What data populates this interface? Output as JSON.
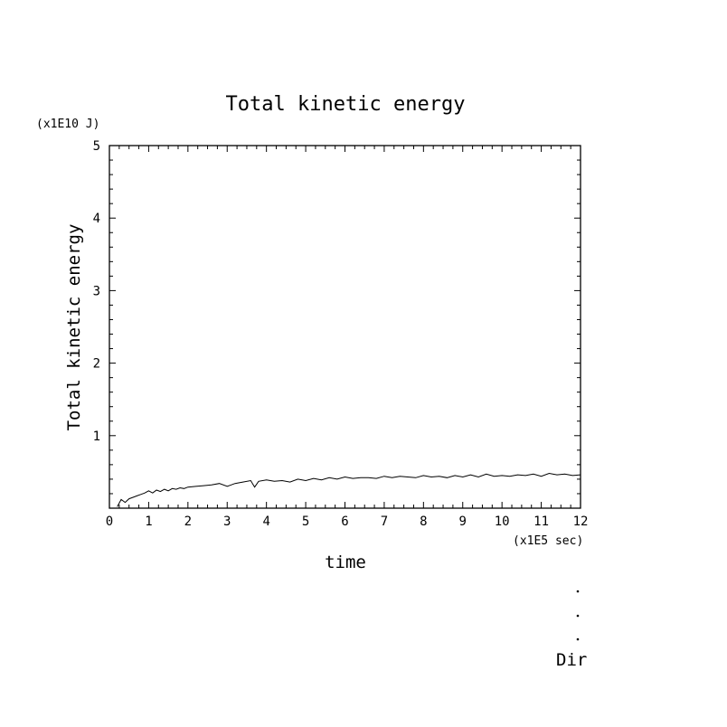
{
  "chart_data": {
    "type": "line",
    "title": "Total kinetic energy",
    "xlabel": "time",
    "ylabel": "Total kinetic energy",
    "x_unit": "(x1E5 sec)",
    "y_unit": "(x1E10 J)",
    "xlim": [
      0,
      12
    ],
    "ylim": [
      0,
      5
    ],
    "x_ticks": [
      "0",
      "1",
      "2",
      "3",
      "4",
      "5",
      "6",
      "7",
      "8",
      "9",
      "10",
      "11",
      "12"
    ],
    "y_ticks": [
      "1",
      "2",
      "3",
      "4",
      "5"
    ],
    "grid": false,
    "series": [
      {
        "x": [
          0.2,
          0.3,
          0.4,
          0.5,
          0.6,
          0.7,
          0.8,
          0.9,
          1.0,
          1.1,
          1.2,
          1.3,
          1.4,
          1.5,
          1.6,
          1.7,
          1.8,
          1.9,
          2.0,
          2.2,
          2.4,
          2.6,
          2.8,
          3.0,
          3.2,
          3.4,
          3.6,
          3.7,
          3.8,
          4.0,
          4.2,
          4.4,
          4.6,
          4.8,
          5.0,
          5.2,
          5.4,
          5.6,
          5.8,
          6.0,
          6.2,
          6.4,
          6.6,
          6.8,
          7.0,
          7.2,
          7.4,
          7.6,
          7.8,
          8.0,
          8.2,
          8.4,
          8.6,
          8.8,
          9.0,
          9.2,
          9.4,
          9.6,
          9.8,
          10.0,
          10.2,
          10.4,
          10.6,
          10.8,
          11.0,
          11.2,
          11.4,
          11.6,
          11.8,
          12.0
        ],
        "y": [
          0.02,
          0.12,
          0.08,
          0.13,
          0.15,
          0.17,
          0.19,
          0.21,
          0.24,
          0.21,
          0.25,
          0.23,
          0.26,
          0.24,
          0.27,
          0.26,
          0.28,
          0.27,
          0.29,
          0.3,
          0.31,
          0.32,
          0.34,
          0.3,
          0.34,
          0.36,
          0.38,
          0.29,
          0.37,
          0.39,
          0.37,
          0.38,
          0.36,
          0.4,
          0.38,
          0.41,
          0.39,
          0.42,
          0.4,
          0.43,
          0.41,
          0.42,
          0.42,
          0.41,
          0.44,
          0.42,
          0.44,
          0.43,
          0.42,
          0.45,
          0.43,
          0.44,
          0.42,
          0.45,
          0.43,
          0.46,
          0.43,
          0.47,
          0.44,
          0.45,
          0.44,
          0.46,
          0.45,
          0.47,
          0.44,
          0.48,
          0.46,
          0.47,
          0.45,
          0.46
        ]
      }
    ]
  },
  "legend": {
    "label": "Dir"
  }
}
